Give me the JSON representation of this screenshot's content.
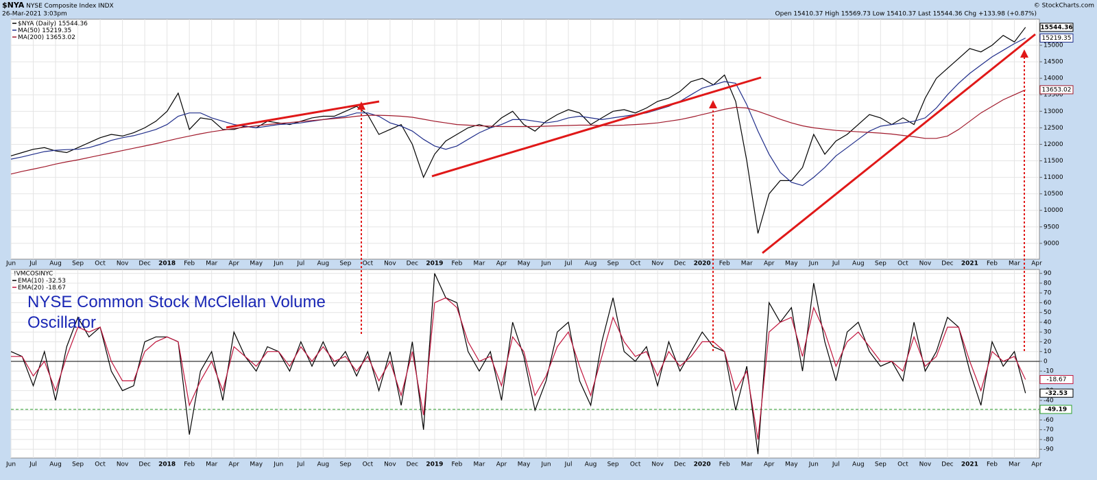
{
  "chart_data": [
    {
      "type": "line",
      "title": "$NYA",
      "subtitle": "NYSE Composite Index INDX",
      "date": "26-Mar-2021 3:03pm",
      "quote": "Open 15410.37 High 15569.73 Low 15410.37 Last 15544.36 Chg +133.98 (+0.87%)",
      "source": "© StockCharts.com",
      "categories": [
        "Jun",
        null,
        "Jul",
        null,
        "Aug",
        null,
        "Sep",
        null,
        "Oct",
        null,
        "Nov",
        null,
        "Dec",
        null,
        "2018",
        null,
        "Feb",
        null,
        "Mar",
        null,
        "Apr",
        null,
        "May",
        null,
        "Jun",
        null,
        "Jul",
        null,
        "Aug",
        null,
        "Sep",
        null,
        "Oct",
        null,
        "Nov",
        null,
        "Dec",
        null,
        "2019",
        null,
        "Feb",
        null,
        "Mar",
        null,
        "Apr",
        null,
        "May",
        null,
        "Jun",
        null,
        "Jul",
        null,
        "Aug",
        null,
        "Sep",
        null,
        "Oct",
        null,
        "Nov",
        null,
        "Dec",
        null,
        "2020",
        null,
        "Feb",
        null,
        "Mar",
        null,
        "Apr",
        null,
        "May",
        null,
        "Jun",
        null,
        "Jul",
        null,
        "Aug",
        null,
        "Sep",
        null,
        "Oct",
        null,
        "Nov",
        null,
        "Dec",
        null,
        "2021",
        null,
        "Feb",
        null,
        "Mar",
        null,
        "Apr"
      ],
      "ylim": [
        8520,
        15790
      ],
      "yticks": [
        9000,
        9500,
        10000,
        10500,
        11000,
        11500,
        12000,
        12500,
        13000,
        13500,
        14000,
        14500,
        15000
      ],
      "grid": true,
      "series": [
        {
          "name": "$NYA (Daily)",
          "color": "#000000",
          "values": [
            11650,
            11750,
            11850,
            11900,
            11800,
            11750,
            11900,
            12050,
            12200,
            12300,
            12250,
            12350,
            12500,
            12700,
            13000,
            13550,
            12450,
            12800,
            12750,
            12450,
            12450,
            12550,
            12500,
            12700,
            12650,
            12600,
            12700,
            12800,
            12850,
            12850,
            13000,
            13150,
            12900,
            12300,
            12450,
            12600,
            12000,
            11000,
            11700,
            12100,
            12300,
            12500,
            12600,
            12500,
            12800,
            13000,
            12600,
            12400,
            12700,
            12900,
            13050,
            12950,
            12600,
            12800,
            13000,
            13050,
            12950,
            13100,
            13300,
            13400,
            13600,
            13900,
            14000,
            13800,
            14100,
            13300,
            11500,
            9300,
            10500,
            10900,
            10900,
            11300,
            12300,
            11700,
            12100,
            12300,
            12600,
            12900,
            12800,
            12600,
            12800,
            12600,
            13400,
            14000,
            14300,
            14600,
            14900,
            14800,
            15000,
            15300,
            15100,
            15544.36,
            null
          ]
        },
        {
          "name": "MA(50)",
          "color": "#1f2d8a",
          "values": [
            11550,
            11620,
            11700,
            11780,
            11820,
            11840,
            11850,
            11900,
            12000,
            12120,
            12200,
            12260,
            12350,
            12450,
            12600,
            12850,
            12950,
            12950,
            12800,
            12700,
            12600,
            12550,
            12500,
            12550,
            12600,
            12620,
            12650,
            12700,
            12750,
            12800,
            12850,
            12950,
            12950,
            12850,
            12650,
            12550,
            12400,
            12150,
            11950,
            11850,
            11950,
            12150,
            12350,
            12500,
            12600,
            12750,
            12750,
            12700,
            12650,
            12700,
            12800,
            12850,
            12800,
            12750,
            12800,
            12850,
            12900,
            12950,
            13050,
            13150,
            13300,
            13500,
            13700,
            13800,
            13900,
            13850,
            13200,
            12400,
            11700,
            11150,
            10850,
            10750,
            11000,
            11300,
            11650,
            11900,
            12150,
            12400,
            12550,
            12600,
            12650,
            12700,
            12800,
            13100,
            13500,
            13850,
            14150,
            14400,
            14650,
            14850,
            15050,
            15219.35,
            null
          ]
        },
        {
          "name": "MA(200)",
          "color": "#a0182a",
          "values": [
            11100,
            11180,
            11250,
            11320,
            11400,
            11470,
            11530,
            11600,
            11670,
            11740,
            11810,
            11880,
            11950,
            12020,
            12100,
            12180,
            12250,
            12320,
            12380,
            12430,
            12480,
            12520,
            12560,
            12600,
            12630,
            12660,
            12690,
            12720,
            12750,
            12780,
            12810,
            12850,
            12880,
            12880,
            12870,
            12850,
            12820,
            12760,
            12700,
            12650,
            12600,
            12580,
            12560,
            12550,
            12540,
            12540,
            12540,
            12540,
            12550,
            12560,
            12570,
            12580,
            12580,
            12570,
            12570,
            12580,
            12600,
            12620,
            12650,
            12700,
            12750,
            12820,
            12900,
            12980,
            13060,
            13120,
            13100,
            13000,
            12880,
            12760,
            12650,
            12560,
            12500,
            12460,
            12420,
            12400,
            12380,
            12360,
            12340,
            12310,
            12270,
            12230,
            12180,
            12180,
            12250,
            12450,
            12700,
            12950,
            13150,
            13350,
            13500,
            13653.02,
            null
          ]
        }
      ]
    },
    {
      "type": "line",
      "title": "!VMCOSINYC",
      "annotation": "NYSE Common Stock McClellan Volume Oscillator",
      "categories": [
        "Jun",
        null,
        "Jul",
        null,
        "Aug",
        null,
        "Sep",
        null,
        "Oct",
        null,
        "Nov",
        null,
        "Dec",
        null,
        "2018",
        null,
        "Feb",
        null,
        "Mar",
        null,
        "Apr",
        null,
        "May",
        null,
        "Jun",
        null,
        "Jul",
        null,
        "Aug",
        null,
        "Sep",
        null,
        "Oct",
        null,
        "Nov",
        null,
        "Dec",
        null,
        "2019",
        null,
        "Feb",
        null,
        "Mar",
        null,
        "Apr",
        null,
        "May",
        null,
        "Jun",
        null,
        "Jul",
        null,
        "Aug",
        null,
        "Sep",
        null,
        "Oct",
        null,
        "Nov",
        null,
        "Dec",
        null,
        "2020",
        null,
        "Feb",
        null,
        "Mar",
        null,
        "Apr",
        null,
        "May",
        null,
        "Jun",
        null,
        "Jul",
        null,
        "Aug",
        null,
        "Sep",
        null,
        "Oct",
        null,
        "Nov",
        null,
        "Dec",
        null,
        "2021",
        null,
        "Feb",
        null,
        "Mar",
        null,
        "Apr"
      ],
      "ylim": [
        -99,
        94
      ],
      "yticks": [
        -90,
        -80,
        -70,
        -60,
        -50,
        -40,
        -30,
        -20,
        -10,
        0,
        10,
        20,
        30,
        40,
        50,
        60,
        70,
        80,
        90
      ],
      "grid": true,
      "zero_line": true,
      "reference_line": {
        "value": -49.19,
        "color": "#2ca02c"
      },
      "series": [
        {
          "name": "EMA(10)",
          "color": "#000000",
          "values": [
            10,
            5,
            -25,
            10,
            -40,
            15,
            45,
            25,
            35,
            -10,
            -30,
            -25,
            20,
            25,
            25,
            20,
            -75,
            -10,
            10,
            -40,
            30,
            5,
            -10,
            15,
            10,
            -10,
            20,
            -5,
            20,
            -5,
            10,
            -15,
            10,
            -30,
            10,
            -45,
            20,
            -70,
            90,
            65,
            60,
            10,
            -10,
            10,
            -40,
            40,
            5,
            -50,
            -20,
            30,
            40,
            -20,
            -45,
            20,
            65,
            10,
            0,
            15,
            -25,
            20,
            -10,
            10,
            30,
            15,
            10,
            -50,
            -5,
            -95,
            60,
            40,
            55,
            -10,
            80,
            20,
            -20,
            30,
            40,
            10,
            -5,
            0,
            -20,
            40,
            -10,
            10,
            45,
            35,
            -10,
            -45,
            20,
            -5,
            10,
            -32.53,
            null
          ]
        },
        {
          "name": "EMA(20)",
          "color": "#c0143c",
          "values": [
            5,
            5,
            -15,
            0,
            -30,
            5,
            35,
            30,
            35,
            0,
            -20,
            -20,
            10,
            20,
            25,
            20,
            -45,
            -20,
            0,
            -30,
            15,
            5,
            -5,
            10,
            10,
            -5,
            15,
            0,
            15,
            0,
            5,
            -10,
            5,
            -20,
            0,
            -35,
            10,
            -55,
            60,
            65,
            55,
            20,
            0,
            5,
            -25,
            25,
            10,
            -35,
            -15,
            15,
            30,
            -5,
            -35,
            5,
            45,
            20,
            5,
            10,
            -15,
            10,
            -5,
            5,
            20,
            20,
            10,
            -30,
            -10,
            -80,
            30,
            40,
            45,
            5,
            55,
            30,
            -5,
            20,
            30,
            15,
            0,
            0,
            -10,
            25,
            -5,
            5,
            35,
            35,
            0,
            -30,
            10,
            0,
            5,
            -18.67,
            null
          ]
        }
      ]
    }
  ]
}
